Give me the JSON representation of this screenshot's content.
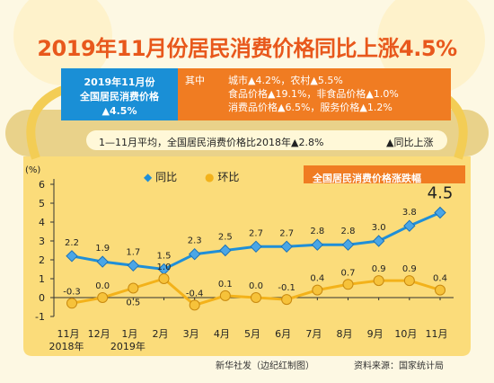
{
  "title": "2019年11月份居民消费价格同比上涨4.5%",
  "summary_box": {
    "line1": "2019年11月份",
    "line2": "全国居民消费价格",
    "line3": "▲4.5%"
  },
  "detail_box": {
    "label": "其中",
    "line1": "城市▲4.2%，农村▲5.5%",
    "line2": "食品价格▲19.1%，非食品价格▲1.0%",
    "line3": "消费品价格▲6.5%，服务价格▲1.2%"
  },
  "note": "1—11月平均，全国居民消费价格比2018年▲2.8%",
  "note_legend": "▲同比上涨",
  "chart_subtitle": "全国居民消费价格涨跌幅",
  "footer_source_left": "新华社发（边纪红制图）",
  "footer_source_right": "资料来源：国家统计局",
  "colors": {
    "title": "#e8581c",
    "blue": "#1a8fd6",
    "orange": "#f07c22",
    "yoy": "#1f8fd8",
    "mom": "#f3b21a",
    "panel": "#fbdc7a"
  },
  "chart_data": {
    "type": "line",
    "unit_label": "(%)",
    "categories": [
      "11月",
      "12月",
      "1月",
      "2月",
      "3月",
      "4月",
      "5月",
      "6月",
      "7月",
      "8月",
      "9月",
      "10月",
      "11月"
    ],
    "year_labels": [
      {
        "at": 0,
        "text": "2018年"
      },
      {
        "at": 2,
        "text": "2019年"
      }
    ],
    "ylim": [
      -1,
      6
    ],
    "yticks": [
      -1,
      0,
      1,
      2,
      3,
      4,
      5,
      6
    ],
    "grid": false,
    "legend_position": "top-left",
    "series": [
      {
        "name": "同比",
        "marker": "diamond",
        "color": "#1f8fd8",
        "values": [
          2.2,
          1.9,
          1.7,
          1.5,
          2.3,
          2.5,
          2.7,
          2.7,
          2.8,
          2.8,
          3.0,
          3.8,
          4.5
        ],
        "labels": [
          "2.2",
          "1.9",
          "1.7",
          "1.5",
          "2.3",
          "2.5",
          "2.7",
          "2.7",
          "2.8",
          "2.8",
          "3.0",
          "3.8",
          "4.5"
        ]
      },
      {
        "name": "环比",
        "marker": "circle",
        "color": "#f3b21a",
        "values": [
          -0.3,
          0.0,
          0.5,
          1.0,
          -0.4,
          0.1,
          0.0,
          -0.1,
          0.4,
          0.7,
          0.9,
          0.9,
          0.4
        ],
        "labels": [
          "-0.3",
          "0.0",
          "0.5",
          "1.0",
          "-0.4",
          "0.1",
          "0.0",
          "-0.1",
          "0.4",
          "0.7",
          "0.9",
          "0.9",
          "0.4"
        ]
      }
    ]
  }
}
